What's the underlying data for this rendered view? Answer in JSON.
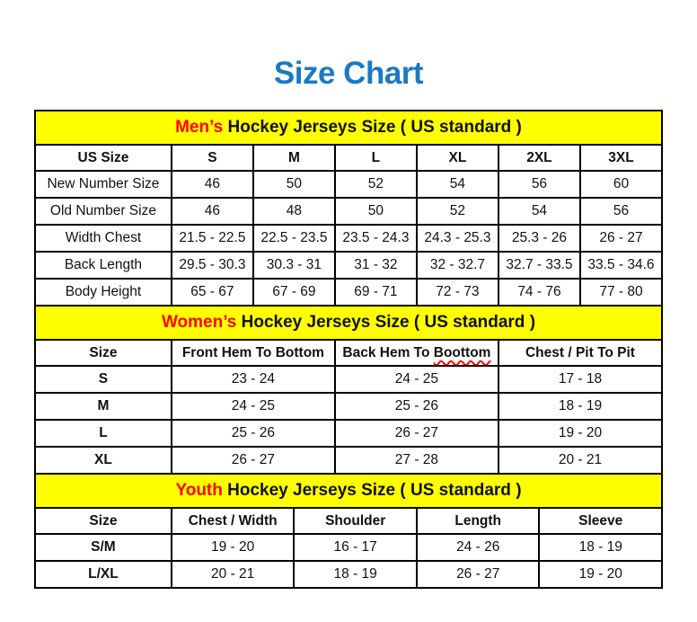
{
  "page_title": "Size Chart",
  "colors": {
    "title_blue": "#1b79c3",
    "band_yellow": "#ffff00",
    "highlight_red": "#ff0000",
    "border_black": "#000000"
  },
  "chart_data": [
    {
      "type": "table",
      "id": "men",
      "title_highlight": "Men’s",
      "title_rest": " Hockey Jerseys Size ( US standard )",
      "columns": [
        "US Size",
        "S",
        "M",
        "L",
        "XL",
        "2XL",
        "3XL"
      ],
      "rows": [
        {
          "label": "New Number Size",
          "values": [
            "46",
            "50",
            "52",
            "54",
            "56",
            "60"
          ]
        },
        {
          "label": "Old Number Size",
          "values": [
            "46",
            "48",
            "50",
            "52",
            "54",
            "56"
          ]
        },
        {
          "label": "Width Chest",
          "values": [
            "21.5 - 22.5",
            "22.5 - 23.5",
            "23.5 - 24.3",
            "24.3 - 25.3",
            "25.3 - 26",
            "26 - 27"
          ]
        },
        {
          "label": "Back Length",
          "values": [
            "29.5 - 30.3",
            "30.3 - 31",
            "31 - 32",
            "32 - 32.7",
            "32.7 - 33.5",
            "33.5 - 34.6"
          ]
        },
        {
          "label": "Body Height",
          "values": [
            "65 - 67",
            "67 - 69",
            "69 - 71",
            "72 - 73",
            "74 - 76",
            "77 - 80"
          ]
        }
      ]
    },
    {
      "type": "table",
      "id": "women",
      "title_highlight": "Women’s",
      "title_rest": " Hockey Jerseys Size ( US standard )",
      "columns": [
        "Size",
        "Front Hem To Bottom",
        "Back Hem To Boottom",
        "Chest / Pit To Pit"
      ],
      "misspelled_word": "Boottom",
      "rows": [
        {
          "label": "S",
          "values": [
            "23 - 24",
            "24 - 25",
            "17 - 18"
          ]
        },
        {
          "label": "M",
          "values": [
            "24 - 25",
            "25 - 26",
            "18 - 19"
          ]
        },
        {
          "label": "L",
          "values": [
            "25 - 26",
            "26 - 27",
            "19 - 20"
          ]
        },
        {
          "label": "XL",
          "values": [
            "26 - 27",
            "27 - 28",
            "20 - 21"
          ]
        }
      ]
    },
    {
      "type": "table",
      "id": "youth",
      "title_highlight": "Youth",
      "title_rest": " Hockey Jerseys Size ( US standard )",
      "columns": [
        "Size",
        "Chest / Width",
        "Shoulder",
        "Length",
        "Sleeve"
      ],
      "rows": [
        {
          "label": "S/M",
          "values": [
            "19 - 20",
            "16 - 17",
            "24 - 26",
            "18 - 19"
          ]
        },
        {
          "label": "L/XL",
          "values": [
            "20 - 21",
            "18 - 19",
            "26 - 27",
            "19 - 20"
          ]
        }
      ]
    }
  ]
}
